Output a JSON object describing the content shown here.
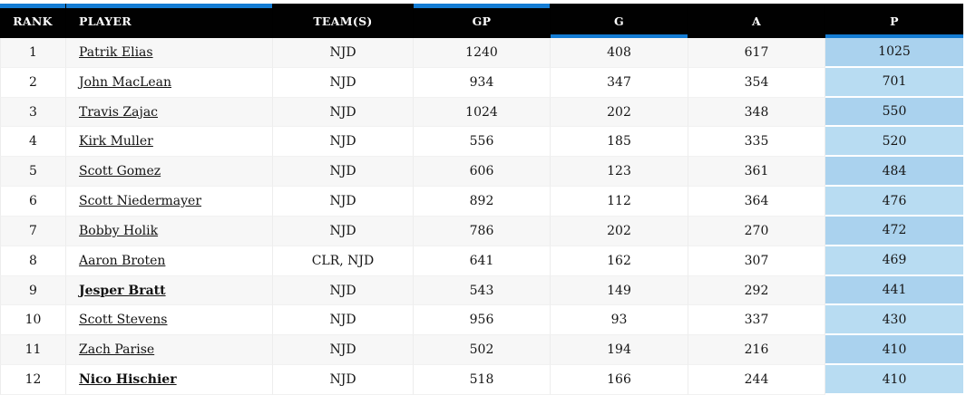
{
  "table": {
    "columns": [
      {
        "key": "rank",
        "label": "RANK",
        "accent_top": true,
        "accent_bottom": false
      },
      {
        "key": "player",
        "label": "PLAYER",
        "accent_top": true,
        "accent_bottom": false
      },
      {
        "key": "teams",
        "label": "TEAM(S)",
        "accent_top": false,
        "accent_bottom": false
      },
      {
        "key": "gp",
        "label": "GP",
        "accent_top": true,
        "accent_bottom": false
      },
      {
        "key": "g",
        "label": "G",
        "accent_top": false,
        "accent_bottom": true
      },
      {
        "key": "a",
        "label": "A",
        "accent_top": false,
        "accent_bottom": false
      },
      {
        "key": "p",
        "label": "P",
        "accent_top": false,
        "accent_bottom": true
      }
    ],
    "rows": [
      {
        "rank": "1",
        "player": "Patrik Elias",
        "bold": false,
        "teams": "NJD",
        "gp": "1240",
        "g": "408",
        "a": "617",
        "p": "1025"
      },
      {
        "rank": "2",
        "player": "John MacLean",
        "bold": false,
        "teams": "NJD",
        "gp": "934",
        "g": "347",
        "a": "354",
        "p": "701"
      },
      {
        "rank": "3",
        "player": "Travis Zajac",
        "bold": false,
        "teams": "NJD",
        "gp": "1024",
        "g": "202",
        "a": "348",
        "p": "550"
      },
      {
        "rank": "4",
        "player": "Kirk Muller",
        "bold": false,
        "teams": "NJD",
        "gp": "556",
        "g": "185",
        "a": "335",
        "p": "520"
      },
      {
        "rank": "5",
        "player": "Scott Gomez",
        "bold": false,
        "teams": "NJD",
        "gp": "606",
        "g": "123",
        "a": "361",
        "p": "484"
      },
      {
        "rank": "6",
        "player": "Scott Niedermayer",
        "bold": false,
        "teams": "NJD",
        "gp": "892",
        "g": "112",
        "a": "364",
        "p": "476"
      },
      {
        "rank": "7",
        "player": "Bobby Holik",
        "bold": false,
        "teams": "NJD",
        "gp": "786",
        "g": "202",
        "a": "270",
        "p": "472"
      },
      {
        "rank": "8",
        "player": "Aaron Broten",
        "bold": false,
        "teams": "CLR, NJD",
        "gp": "641",
        "g": "162",
        "a": "307",
        "p": "469"
      },
      {
        "rank": "9",
        "player": "Jesper Bratt",
        "bold": true,
        "teams": "NJD",
        "gp": "543",
        "g": "149",
        "a": "292",
        "p": "441"
      },
      {
        "rank": "10",
        "player": "Scott Stevens",
        "bold": false,
        "teams": "NJD",
        "gp": "956",
        "g": "93",
        "a": "337",
        "p": "430"
      },
      {
        "rank": "11",
        "player": "Zach Parise",
        "bold": false,
        "teams": "NJD",
        "gp": "502",
        "g": "194",
        "a": "216",
        "p": "410"
      },
      {
        "rank": "12",
        "player": "Nico Hischier",
        "bold": true,
        "teams": "NJD",
        "gp": "518",
        "g": "166",
        "a": "244",
        "p": "410"
      }
    ]
  },
  "colors": {
    "accent_blue": "#147cd4",
    "header_bg": "#010101",
    "p_cell_odd": "#aad2ee",
    "p_cell_even": "#b8dcf2",
    "row_odd": "#f7f7f7",
    "row_even": "#ffffff"
  }
}
